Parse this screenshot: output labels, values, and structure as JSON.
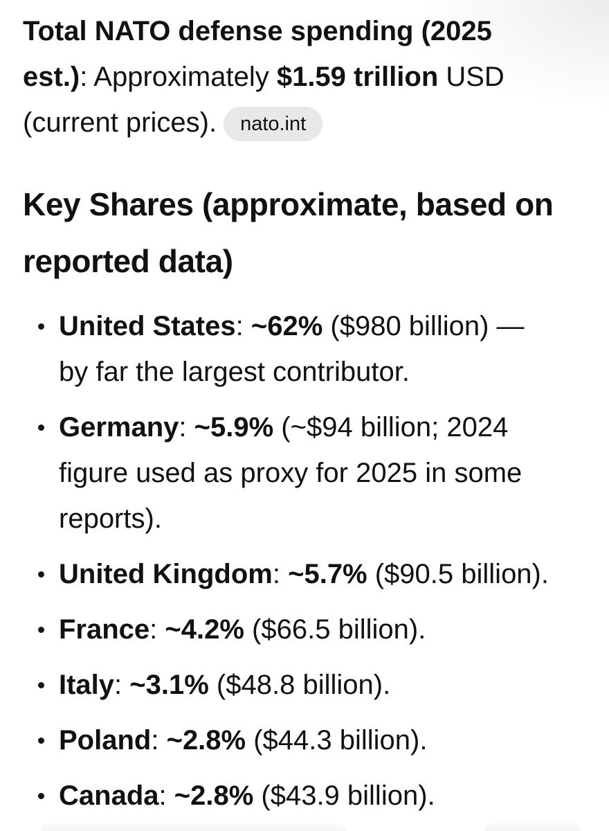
{
  "colors": {
    "background": "#ffffff",
    "text": "#111111",
    "citation_pill_bg": "#e8e8e9",
    "bullet_dot": "#161616",
    "top_right_shade": "#e9ebed"
  },
  "intro": {
    "bold_lead": "Total NATO defense spending (2025 est.)",
    "mid_text": ": Approximately ",
    "bold_amount": "$1.59 trillion",
    "tail_text": " USD (current prices).",
    "citation_label": "nato.int"
  },
  "heading": {
    "text": "Key Shares (approximate, based on reported data)"
  },
  "list": {
    "separator": ": ",
    "items": [
      {
        "label": "United States",
        "share": "~62%",
        "detail": " ($980 billion) — by far the largest contributor."
      },
      {
        "label": "Germany",
        "share": "~5.9%",
        "detail": " (~$94 billion; 2024 figure used as proxy for 2025 in some reports)."
      },
      {
        "label": "United Kingdom",
        "share": "~5.7%",
        "detail": " ($90.5 billion)."
      },
      {
        "label": "France",
        "share": "~4.2%",
        "detail": " ($66.5 billion)."
      },
      {
        "label": "Italy",
        "share": "~3.1%",
        "detail": " ($48.8 billion)."
      },
      {
        "label": "Poland",
        "share": "~2.8%",
        "detail": " ($44.3 billion)."
      },
      {
        "label": "Canada",
        "share": "~2.8%",
        "detail": " ($43.9 billion)."
      }
    ]
  }
}
